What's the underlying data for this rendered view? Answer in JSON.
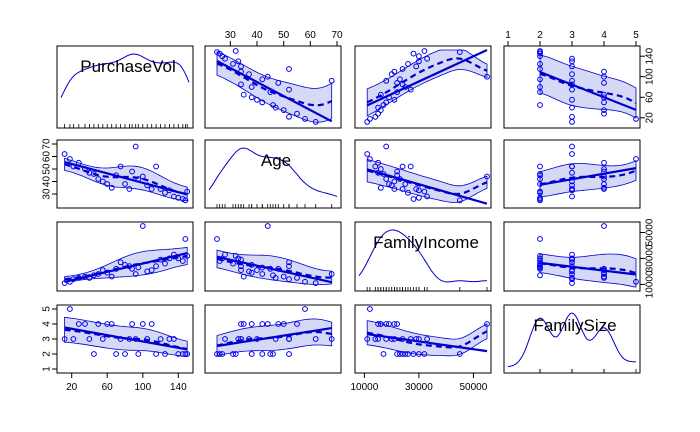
{
  "chart_data": {
    "type": "scatter",
    "title": "",
    "variables": [
      "PurchaseVol",
      "Age",
      "FamilyIncome",
      "FamilySize"
    ],
    "axes": {
      "PurchaseVol": {
        "range": [
          8,
          152
        ],
        "ticks": [
          20,
          60,
          100,
          140
        ],
        "tick_labels": [
          "20",
          "60",
          "100",
          "140"
        ]
      },
      "Age": {
        "range": [
          22,
          70
        ],
        "ticks": [
          30,
          40,
          50,
          60,
          70
        ],
        "tick_labels": [
          "30",
          "40",
          "50",
          "60",
          "70"
        ]
      },
      "FamilyIncome": {
        "range": [
          8000,
          55000
        ],
        "ticks": [
          10000,
          30000,
          50000
        ],
        "tick_labels": [
          "10000",
          "30000",
          "50000"
        ]
      },
      "FamilySize": {
        "range": [
          1,
          5
        ],
        "ticks": [
          1,
          2,
          3,
          4,
          5
        ],
        "tick_labels": [
          "1",
          "2",
          "3",
          "4",
          "5"
        ]
      }
    },
    "observations": {
      "PurchaseVol": [
        12,
        18,
        22,
        28,
        35,
        40,
        45,
        50,
        55,
        60,
        65,
        70,
        75,
        80,
        85,
        88,
        92,
        95,
        100,
        105,
        110,
        115,
        120,
        125,
        130,
        135,
        140,
        145,
        148,
        150
      ],
      "Age": [
        62,
        58,
        52,
        55,
        50,
        47,
        46,
        42,
        40,
        38,
        35,
        45,
        52,
        38,
        34,
        48,
        68,
        42,
        44,
        37,
        34,
        52,
        34,
        31,
        33,
        28,
        27,
        26,
        25,
        32
      ],
      "FamilyIncome": [
        11000,
        12000,
        14000,
        15000,
        16000,
        15000,
        17000,
        18000,
        21000,
        19000,
        16000,
        22000,
        27000,
        25000,
        24000,
        22000,
        18000,
        23000,
        55000,
        20000,
        21000,
        24000,
        29000,
        26000,
        30000,
        33000,
        30000,
        28000,
        45000,
        32000
      ],
      "FamilySize": [
        3,
        5,
        3,
        4,
        4,
        3,
        2,
        4,
        3,
        4,
        4,
        2,
        3,
        2,
        3,
        4,
        3,
        2,
        4,
        3,
        4,
        2,
        3,
        2,
        3,
        3,
        2,
        2,
        2,
        2
      ]
    },
    "grid": false,
    "legend": "none"
  }
}
